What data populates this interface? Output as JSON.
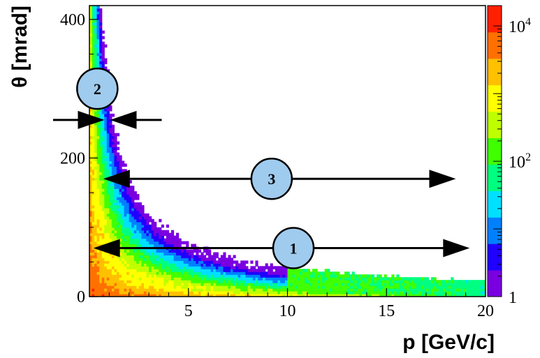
{
  "chart_data": {
    "type": "heatmap",
    "xlabel": "p [GeV/c]",
    "ylabel": "θ [mrad]",
    "xlim": [
      0,
      20
    ],
    "ylim": [
      0,
      420
    ],
    "x_ticks": [
      "5",
      "10",
      "15",
      "20"
    ],
    "x_tick_values": [
      5,
      10,
      15,
      20
    ],
    "y_ticks": [
      "0",
      "200",
      "400"
    ],
    "y_tick_values": [
      0,
      200,
      400
    ],
    "z_scale": "log",
    "z_range": [
      1,
      20000
    ],
    "colorbar_ticks": [
      {
        "label": "1",
        "base": "1",
        "exp": "",
        "value": 1
      },
      {
        "label": "10^2",
        "base": "10",
        "exp": "2",
        "value": 100
      },
      {
        "label": "10^4",
        "base": "10",
        "exp": "4",
        "value": 10000
      }
    ],
    "colormap": [
      "#7a00e0",
      "#2000ff",
      "#0080ff",
      "#00e0ff",
      "#00ff80",
      "#40ff00",
      "#c0ff00",
      "#ffff00",
      "#ffc000",
      "#ff7000",
      "#ff2000"
    ],
    "annotations": [
      {
        "label": "1",
        "description": "double arrow",
        "x_range": [
          0.2,
          19.2
        ],
        "theta": 70,
        "label_x": 10.3
      },
      {
        "label": "2",
        "description": "converging arrows",
        "x": 0.9,
        "theta": 255,
        "label_x": 0.4,
        "label_theta": 300
      },
      {
        "label": "3",
        "description": "double arrow",
        "x_range": [
          0.7,
          18.5
        ],
        "theta": 170,
        "label_x": 9.2
      }
    ]
  }
}
